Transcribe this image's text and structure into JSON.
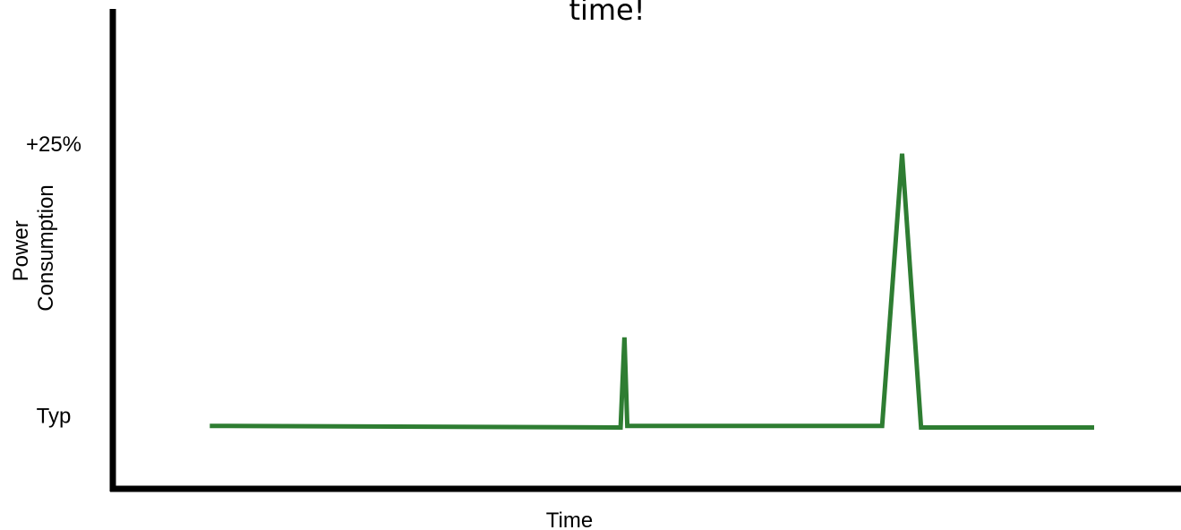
{
  "chart_data": {
    "type": "line",
    "title": "time!",
    "xlabel": "Time",
    "ylabel_lines": [
      "Power",
      "Consumption"
    ],
    "y_ticks": [
      {
        "label": "Typ",
        "value": 0
      },
      {
        "label": "+25%",
        "value": 25
      }
    ],
    "ylim": [
      -5.5,
      32
    ],
    "xlim": [
      0,
      100
    ],
    "grid": false,
    "legend": "none",
    "series": [
      {
        "color": "#2e7d32",
        "points": [
          [
            7,
            0.05
          ],
          [
            50.2,
            -0.1
          ],
          [
            50.6,
            8.2
          ],
          [
            50.9,
            0.05
          ],
          [
            77.7,
            0.05
          ],
          [
            79.8,
            25.1
          ],
          [
            81.8,
            -0.1
          ],
          [
            100,
            -0.1
          ]
        ]
      }
    ]
  }
}
